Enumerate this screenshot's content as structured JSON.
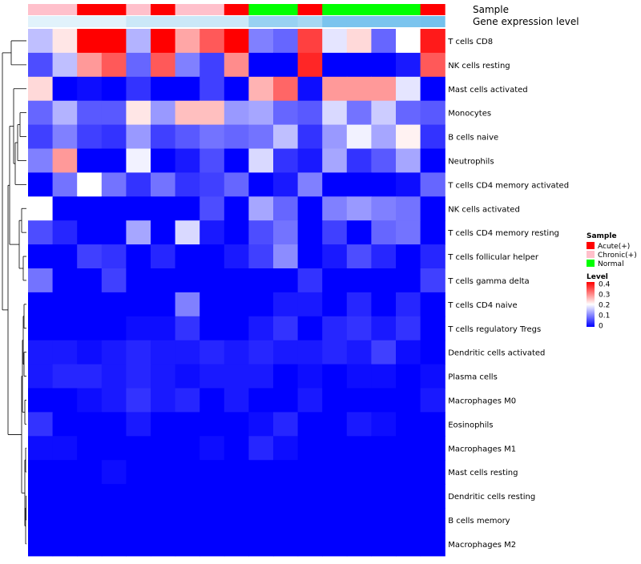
{
  "chart_data": {
    "type": "heatmap",
    "title": "",
    "annotation_tracks": [
      {
        "key": "sample",
        "label": "Sample"
      },
      {
        "key": "gene_expression",
        "label": "Gene expression level"
      }
    ],
    "sample_groups": [
      "Chronic(+)",
      "Chronic(+)",
      "Acute(+)",
      "Acute(+)",
      "Chronic(+)",
      "Acute(+)",
      "Chronic(+)",
      "Chronic(+)",
      "Acute(+)",
      "Normal",
      "Normal",
      "Acute(+)",
      "Normal",
      "Normal",
      "Normal",
      "Normal",
      "Acute(+)"
    ],
    "group_colors": {
      "Acute(+)": "#ff0000",
      "Chronic(+)": "#ffc0cb",
      "Normal": "#00ff00"
    },
    "gene_expression_values": [
      0.05,
      0.05,
      0.05,
      0.05,
      0.2,
      0.2,
      0.2,
      0.2,
      0.2,
      0.55,
      0.55,
      0.45,
      0.75,
      0.75,
      0.75,
      0.75,
      0.8
    ],
    "gene_expression_colors": {
      "low": "#e8f5fc",
      "high": "#56b4e9"
    },
    "rows": [
      "T cells CD8",
      "NK cells resting",
      "Mast cells activated",
      "Monocytes",
      "B cells naive",
      "Neutrophils",
      "T cells CD4 memory activated",
      "NK cells activated",
      "T cells CD4 memory resting",
      "T cells follicular helper",
      "T cells gamma delta",
      "T cells CD4 naive",
      "T cells regulatory  Tregs",
      "Dendritic cells activated",
      "Plasma cells",
      "Macrophages M0",
      "Eosinophils",
      "Macrophages M1",
      "Mast cells resting",
      "Dendritic cells resting",
      "B cells memory",
      "Macrophages M2"
    ],
    "values": [
      [
        0.15,
        0.22,
        0.4,
        0.4,
        0.14,
        0.4,
        0.27,
        0.33,
        0.4,
        0.1,
        0.08,
        0.35,
        0.18,
        0.23,
        0.08,
        0.2,
        0.38
      ],
      [
        0.06,
        0.15,
        0.28,
        0.33,
        0.08,
        0.33,
        0.1,
        0.05,
        0.29,
        0.0,
        0.0,
        0.37,
        0.0,
        0.0,
        0.0,
        0.02,
        0.33
      ],
      [
        0.23,
        0.0,
        0.01,
        0.0,
        0.04,
        0.0,
        0.0,
        0.05,
        0.0,
        0.26,
        0.32,
        0.01,
        0.28,
        0.28,
        0.28,
        0.18,
        0.0
      ],
      [
        0.08,
        0.14,
        0.07,
        0.07,
        0.22,
        0.12,
        0.25,
        0.25,
        0.12,
        0.13,
        0.08,
        0.07,
        0.17,
        0.09,
        0.16,
        0.08,
        0.07
      ],
      [
        0.05,
        0.1,
        0.05,
        0.04,
        0.12,
        0.05,
        0.07,
        0.09,
        0.08,
        0.09,
        0.15,
        0.04,
        0.12,
        0.19,
        0.13,
        0.21,
        0.04
      ],
      [
        0.1,
        0.28,
        0.0,
        0.0,
        0.19,
        0.0,
        0.02,
        0.06,
        0.0,
        0.17,
        0.04,
        0.02,
        0.13,
        0.04,
        0.07,
        0.13,
        0.0
      ],
      [
        0.0,
        0.09,
        0.2,
        0.09,
        0.04,
        0.09,
        0.04,
        0.05,
        0.08,
        0.0,
        0.02,
        0.1,
        0.0,
        0.0,
        0.0,
        0.01,
        0.08
      ],
      [
        0.2,
        0.0,
        0.0,
        0.0,
        0.0,
        0.0,
        0.0,
        0.06,
        0.0,
        0.13,
        0.08,
        0.0,
        0.1,
        0.12,
        0.1,
        0.09,
        0.0
      ],
      [
        0.06,
        0.03,
        0.0,
        0.0,
        0.13,
        0.0,
        0.17,
        0.02,
        0.0,
        0.06,
        0.09,
        0.0,
        0.05,
        0.0,
        0.08,
        0.09,
        0.0
      ],
      [
        0.0,
        0.0,
        0.05,
        0.04,
        0.0,
        0.03,
        0.0,
        0.0,
        0.02,
        0.05,
        0.11,
        0.0,
        0.02,
        0.06,
        0.03,
        0.0,
        0.03
      ],
      [
        0.09,
        0.0,
        0.0,
        0.05,
        0.0,
        0.0,
        0.0,
        0.0,
        0.0,
        0.0,
        0.0,
        0.04,
        0.0,
        0.0,
        0.0,
        0.0,
        0.05
      ],
      [
        0.0,
        0.0,
        0.0,
        0.0,
        0.0,
        0.0,
        0.1,
        0.0,
        0.0,
        0.0,
        0.02,
        0.02,
        0.0,
        0.03,
        0.0,
        0.03,
        0.0
      ],
      [
        0.0,
        0.0,
        0.0,
        0.0,
        0.01,
        0.01,
        0.04,
        0.0,
        0.0,
        0.02,
        0.04,
        0.0,
        0.03,
        0.04,
        0.02,
        0.04,
        0.0
      ],
      [
        0.02,
        0.02,
        0.01,
        0.02,
        0.03,
        0.02,
        0.02,
        0.03,
        0.02,
        0.03,
        0.02,
        0.02,
        0.03,
        0.02,
        0.05,
        0.01,
        0.0
      ],
      [
        0.02,
        0.03,
        0.03,
        0.02,
        0.03,
        0.02,
        0.01,
        0.02,
        0.02,
        0.02,
        0.0,
        0.01,
        0.0,
        0.01,
        0.01,
        0.0,
        0.01
      ],
      [
        0.0,
        0.0,
        0.01,
        0.02,
        0.04,
        0.02,
        0.03,
        0.0,
        0.02,
        0.0,
        0.0,
        0.02,
        0.0,
        0.0,
        0.0,
        0.0,
        0.02
      ],
      [
        0.04,
        0.0,
        0.0,
        0.0,
        0.02,
        0.0,
        0.0,
        0.0,
        0.0,
        0.01,
        0.03,
        0.0,
        0.0,
        0.02,
        0.01,
        0.0,
        0.0
      ],
      [
        0.01,
        0.01,
        0.0,
        0.0,
        0.0,
        0.0,
        0.0,
        0.01,
        0.0,
        0.03,
        0.01,
        0.0,
        0.0,
        0.0,
        0.0,
        0.0,
        0.0
      ],
      [
        0.0,
        0.0,
        0.0,
        0.01,
        0.0,
        0.0,
        0.0,
        0.0,
        0.0,
        0.0,
        0.0,
        0.0,
        0.0,
        0.0,
        0.0,
        0.0,
        0.0
      ],
      [
        0.0,
        0.0,
        0.0,
        0.0,
        0.0,
        0.0,
        0.0,
        0.0,
        0.0,
        0.0,
        0.0,
        0.0,
        0.0,
        0.0,
        0.0,
        0.0,
        0.0
      ],
      [
        0.0,
        0.0,
        0.0,
        0.0,
        0.0,
        0.0,
        0.0,
        0.0,
        0.0,
        0.0,
        0.0,
        0.0,
        0.0,
        0.0,
        0.0,
        0.0,
        0.0
      ],
      [
        0.0,
        0.0,
        0.0,
        0.0,
        0.0,
        0.0,
        0.0,
        0.0,
        0.0,
        0.0,
        0.0,
        0.0,
        0.0,
        0.0,
        0.0,
        0.0,
        0.0
      ]
    ],
    "color_scale": {
      "min": 0,
      "max": 0.4,
      "low": "#0000ff",
      "mid": "#ffffff",
      "high": "#ff0000",
      "midpoint": 0.2
    },
    "legend": {
      "sample_title": "Sample",
      "sample_entries": [
        "Acute(+)",
        "Chronic(+)",
        "Normal"
      ],
      "level_title": "Level",
      "level_ticks": [
        "0.4",
        "0.3",
        "0.2",
        "0.1",
        "0"
      ],
      "placement": "right"
    },
    "row_dendrogram": true,
    "grid": false
  }
}
